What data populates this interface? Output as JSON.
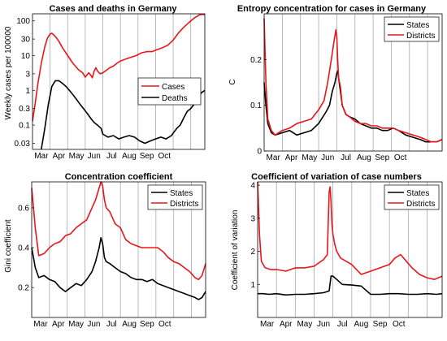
{
  "colors": {
    "black": "#000000",
    "red": "#e8161b",
    "grid": "#a9a9a9"
  },
  "months": [
    "Mar",
    "Apr",
    "May",
    "Jun",
    "Jul",
    "Aug",
    "Sep",
    "Oct"
  ],
  "chart_data": [
    {
      "id": "p1",
      "type": "line",
      "title": "Cases and deaths in Germany",
      "xlabel": "",
      "ylabel": "Weekly cases per 100000",
      "yscale": "log",
      "xlim": [
        0,
        9.8
      ],
      "ylim": [
        0.02,
        160
      ],
      "yticks": [
        0.03,
        0.1,
        0.3,
        1,
        3,
        10,
        30,
        100
      ],
      "ytick_labels": [
        "0.03",
        "0.1",
        "0.3",
        "1",
        "3",
        "10",
        "30",
        "100"
      ],
      "legend": "center-right",
      "legend_entries": [
        "Cases",
        "Deaths"
      ],
      "series": [
        {
          "name": "Cases",
          "color": "red",
          "x": [
            0,
            0.15,
            0.3,
            0.5,
            0.7,
            0.85,
            1.0,
            1.1,
            1.2,
            1.35,
            1.5,
            1.7,
            2.0,
            2.3,
            2.6,
            2.85,
            3.0,
            3.1,
            3.2,
            3.3,
            3.4,
            3.5,
            3.6,
            3.7,
            3.85,
            4.0,
            4.2,
            4.4,
            4.6,
            4.8,
            5.0,
            5.3,
            5.6,
            5.9,
            6.2,
            6.5,
            6.8,
            7.1,
            7.4,
            7.7,
            8.0,
            8.3,
            8.6,
            8.9,
            9.2,
            9.5,
            9.7,
            9.8
          ],
          "y": [
            0.13,
            0.4,
            1.5,
            6,
            18,
            32,
            42,
            44,
            40,
            33,
            26,
            17,
            10,
            6,
            4,
            3.2,
            2.4,
            2.8,
            3.2,
            2.8,
            2.3,
            3.5,
            4.5,
            3.6,
            3,
            3.2,
            3.8,
            4.5,
            5,
            6,
            7,
            8,
            9,
            10,
            12,
            13,
            13,
            15,
            17,
            20,
            28,
            45,
            65,
            90,
            120,
            150,
            155,
            150
          ]
        },
        {
          "name": "Deaths",
          "color": "black",
          "x": [
            0.5,
            0.7,
            0.9,
            1.1,
            1.3,
            1.5,
            1.7,
            1.9,
            2.1,
            2.3,
            2.5,
            2.7,
            2.9,
            3.1,
            3.3,
            3.5,
            3.7,
            3.9,
            4.0,
            4.3,
            4.6,
            4.9,
            5.2,
            5.5,
            5.8,
            6.1,
            6.4,
            6.7,
            7.0,
            7.3,
            7.6,
            7.9,
            8.2,
            8.4,
            8.6,
            8.8,
            9.0,
            9.2,
            9.4,
            9.6,
            9.8
          ],
          "y": [
            0.02,
            0.08,
            0.4,
            1.3,
            1.9,
            1.9,
            1.6,
            1.3,
            1.0,
            0.75,
            0.55,
            0.4,
            0.3,
            0.22,
            0.16,
            0.12,
            0.1,
            0.08,
            0.055,
            0.045,
            0.05,
            0.04,
            0.045,
            0.05,
            0.045,
            0.035,
            0.03,
            0.035,
            0.04,
            0.045,
            0.04,
            0.05,
            0.08,
            0.1,
            0.16,
            0.25,
            0.3,
            0.4,
            0.6,
            0.85,
            1.0
          ]
        }
      ]
    },
    {
      "id": "p2",
      "type": "line",
      "title": "Entropy concentration for cases in Germany",
      "xlabel": "",
      "ylabel": "C",
      "xlim": [
        0,
        9.8
      ],
      "ylim": [
        0,
        0.3
      ],
      "yticks": [
        0,
        0.1,
        0.2
      ],
      "ytick_labels": [
        "0",
        "0.1",
        "0.2"
      ],
      "legend": "top-right",
      "legend_entries": [
        "States",
        "Districts"
      ],
      "series": [
        {
          "name": "States",
          "color": "black",
          "x": [
            0,
            0.1,
            0.2,
            0.4,
            0.6,
            1.0,
            1.4,
            1.8,
            2.2,
            2.6,
            3.0,
            3.4,
            3.6,
            3.75,
            3.9,
            4.0,
            4.05,
            4.1,
            4.2,
            4.3,
            4.5,
            4.7,
            5.0,
            5.3,
            5.6,
            5.9,
            6.2,
            6.5,
            6.8,
            7.1,
            7.4,
            7.8,
            8.2,
            8.6,
            8.9,
            9.2,
            9.5,
            9.8
          ],
          "y": [
            0.15,
            0.1,
            0.06,
            0.04,
            0.035,
            0.04,
            0.045,
            0.035,
            0.04,
            0.045,
            0.06,
            0.085,
            0.1,
            0.13,
            0.15,
            0.17,
            0.175,
            0.16,
            0.13,
            0.1,
            0.08,
            0.075,
            0.07,
            0.06,
            0.055,
            0.05,
            0.05,
            0.045,
            0.045,
            0.05,
            0.045,
            0.035,
            0.03,
            0.025,
            0.02,
            0.02,
            0.02,
            0.025
          ]
        },
        {
          "name": "Districts",
          "color": "red",
          "x": [
            0,
            0.1,
            0.2,
            0.4,
            0.6,
            1.0,
            1.4,
            1.8,
            2.2,
            2.6,
            3.0,
            3.3,
            3.5,
            3.7,
            3.85,
            3.95,
            4.0,
            4.05,
            4.1,
            4.2,
            4.3,
            4.5,
            4.7,
            5.0,
            5.3,
            5.6,
            5.9,
            6.2,
            6.5,
            6.8,
            7.1,
            7.4,
            7.8,
            8.2,
            8.6,
            8.9,
            9.2,
            9.5,
            9.8
          ],
          "y": [
            0.29,
            0.15,
            0.07,
            0.045,
            0.035,
            0.045,
            0.05,
            0.06,
            0.065,
            0.07,
            0.09,
            0.11,
            0.15,
            0.2,
            0.24,
            0.265,
            0.25,
            0.2,
            0.16,
            0.14,
            0.1,
            0.08,
            0.075,
            0.065,
            0.06,
            0.06,
            0.055,
            0.055,
            0.05,
            0.05,
            0.05,
            0.045,
            0.04,
            0.035,
            0.03,
            0.025,
            0.02,
            0.02,
            0.025
          ]
        }
      ]
    },
    {
      "id": "p3",
      "type": "line",
      "title": "Concentration coefficient",
      "xlabel": "",
      "ylabel": "Gini coefficient",
      "xlim": [
        0,
        9.8
      ],
      "ylim": [
        0.05,
        0.73
      ],
      "yticks": [
        0.2,
        0.4,
        0.6
      ],
      "ytick_labels": [
        "0.2",
        "0.4",
        "0.6"
      ],
      "legend": "top-right",
      "legend_entries": [
        "States",
        "Districts"
      ],
      "series": [
        {
          "name": "States",
          "color": "black",
          "x": [
            0,
            0.2,
            0.4,
            0.7,
            1.0,
            1.3,
            1.6,
            1.9,
            2.2,
            2.5,
            2.8,
            3.1,
            3.4,
            3.6,
            3.8,
            3.9,
            4.0,
            4.1,
            4.2,
            4.4,
            4.7,
            5.0,
            5.3,
            5.6,
            5.9,
            6.2,
            6.5,
            6.8,
            7.1,
            7.4,
            7.7,
            8.0,
            8.3,
            8.6,
            8.9,
            9.2,
            9.4,
            9.6,
            9.8
          ],
          "y": [
            0.4,
            0.3,
            0.25,
            0.26,
            0.24,
            0.23,
            0.2,
            0.18,
            0.2,
            0.22,
            0.21,
            0.24,
            0.28,
            0.33,
            0.4,
            0.45,
            0.42,
            0.35,
            0.33,
            0.32,
            0.3,
            0.28,
            0.27,
            0.25,
            0.24,
            0.24,
            0.23,
            0.24,
            0.22,
            0.21,
            0.2,
            0.19,
            0.18,
            0.17,
            0.16,
            0.15,
            0.14,
            0.15,
            0.18
          ]
        },
        {
          "name": "Districts",
          "color": "red",
          "x": [
            0,
            0.2,
            0.4,
            0.7,
            1.0,
            1.3,
            1.6,
            1.9,
            2.2,
            2.5,
            2.8,
            3.1,
            3.4,
            3.6,
            3.8,
            3.9,
            4.0,
            4.1,
            4.2,
            4.4,
            4.7,
            5.0,
            5.3,
            5.6,
            5.9,
            6.2,
            6.5,
            6.8,
            7.1,
            7.4,
            7.7,
            8.0,
            8.3,
            8.6,
            8.9,
            9.2,
            9.4,
            9.6,
            9.8
          ],
          "y": [
            0.7,
            0.5,
            0.36,
            0.37,
            0.4,
            0.42,
            0.43,
            0.46,
            0.47,
            0.5,
            0.52,
            0.54,
            0.6,
            0.64,
            0.7,
            0.73,
            0.71,
            0.64,
            0.6,
            0.58,
            0.52,
            0.5,
            0.44,
            0.42,
            0.41,
            0.4,
            0.4,
            0.4,
            0.4,
            0.38,
            0.35,
            0.33,
            0.32,
            0.3,
            0.28,
            0.25,
            0.24,
            0.26,
            0.32
          ]
        }
      ]
    },
    {
      "id": "p4",
      "type": "line",
      "title": "Coefficient of variation of case numbers",
      "xlabel": "",
      "ylabel": "Coefficient of variation",
      "xlim": [
        0,
        9.8
      ],
      "ylim": [
        0,
        4.1
      ],
      "yticks": [
        1,
        2,
        3,
        4
      ],
      "ytick_labels": [
        "1",
        "2",
        "3",
        "4"
      ],
      "legend": "top-right",
      "legend_entries": [
        "States",
        "Districts"
      ],
      "series": [
        {
          "name": "States",
          "color": "black",
          "x": [
            0,
            0.3,
            0.6,
            1.0,
            1.5,
            2.0,
            2.5,
            3.0,
            3.5,
            3.8,
            3.9,
            4.0,
            4.2,
            4.5,
            5.0,
            5.5,
            6.0,
            6.5,
            7.0,
            7.5,
            8.0,
            8.5,
            9.0,
            9.5,
            9.8
          ],
          "y": [
            0.72,
            0.72,
            0.7,
            0.72,
            0.68,
            0.7,
            0.7,
            0.72,
            0.75,
            0.8,
            1.25,
            1.25,
            1.15,
            1.0,
            0.98,
            0.95,
            0.7,
            0.7,
            0.72,
            0.72,
            0.7,
            0.7,
            0.72,
            0.7,
            0.72
          ]
        },
        {
          "name": "Districts",
          "color": "red",
          "x": [
            0,
            0.1,
            0.2,
            0.4,
            0.7,
            1.0,
            1.5,
            2.0,
            2.5,
            3.0,
            3.5,
            3.7,
            3.8,
            3.85,
            3.9,
            3.95,
            4.0,
            4.1,
            4.2,
            4.4,
            4.7,
            5.0,
            5.5,
            6.0,
            6.5,
            7.0,
            7.3,
            7.6,
            7.9,
            8.2,
            8.6,
            9.0,
            9.4,
            9.8
          ],
          "y": [
            4.1,
            2.5,
            1.7,
            1.5,
            1.45,
            1.45,
            1.4,
            1.5,
            1.5,
            1.55,
            1.75,
            1.9,
            3.8,
            3.95,
            3.5,
            2.8,
            2.5,
            2.2,
            2.0,
            1.8,
            1.7,
            1.6,
            1.3,
            1.4,
            1.5,
            1.6,
            1.8,
            1.9,
            1.7,
            1.5,
            1.3,
            1.2,
            1.15,
            1.25
          ]
        }
      ]
    }
  ]
}
